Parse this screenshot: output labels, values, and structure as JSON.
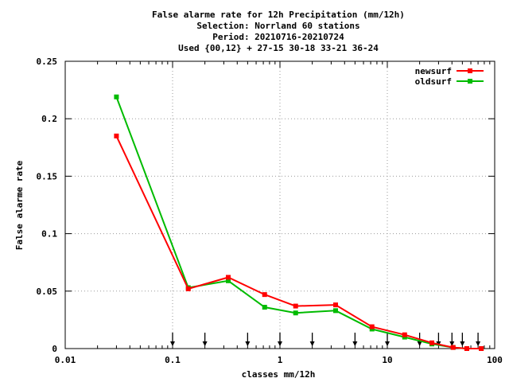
{
  "chart_data": {
    "type": "line",
    "title_lines": [
      "False alarme rate  for 12h Precipitation (mm/12h)",
      "Selection: Norrland     60 stations",
      "Period: 20210716-20210724",
      "Used {00,12} + 27-15 30-18 33-21 36-24"
    ],
    "xlabel": "classes mm/12h",
    "ylabel": "False alarme rate",
    "x_scale": "log",
    "xlim": [
      0.01,
      100
    ],
    "ylim": [
      0,
      0.25
    ],
    "x_ticks": [
      0.01,
      0.1,
      1,
      10,
      100
    ],
    "x_tick_labels": [
      "0.01",
      "0.1",
      "1",
      "10",
      "100"
    ],
    "y_ticks": [
      0,
      0.05,
      0.1,
      0.15,
      0.2,
      0.25
    ],
    "y_tick_labels": [
      "0",
      "0.05",
      "0.1",
      "0.15",
      "0.2",
      "0.25"
    ],
    "grid": true,
    "legend_position": "top-right",
    "class_markers_x": [
      0.1,
      0.2,
      0.5,
      1,
      2,
      5,
      10,
      20,
      30,
      40,
      50,
      70
    ],
    "series": [
      {
        "name": "newsurf",
        "color": "#ff0000",
        "x": [
          0.03,
          0.14,
          0.33,
          0.72,
          1.4,
          3.3,
          7.2,
          14.5,
          26,
          41,
          55,
          75
        ],
        "y": [
          0.185,
          0.052,
          0.062,
          0.047,
          0.037,
          0.038,
          0.019,
          0.012,
          0.005,
          0.001,
          0.0,
          0.0
        ]
      },
      {
        "name": "oldsurf",
        "color": "#00bb00",
        "x": [
          0.03,
          0.14,
          0.33,
          0.72,
          1.4,
          3.3,
          7.2,
          14.5,
          26,
          41,
          55,
          75
        ],
        "y": [
          0.219,
          0.053,
          0.059,
          0.036,
          0.031,
          0.033,
          0.017,
          0.01,
          0.004,
          0.001,
          0.0,
          0.0
        ]
      }
    ]
  }
}
